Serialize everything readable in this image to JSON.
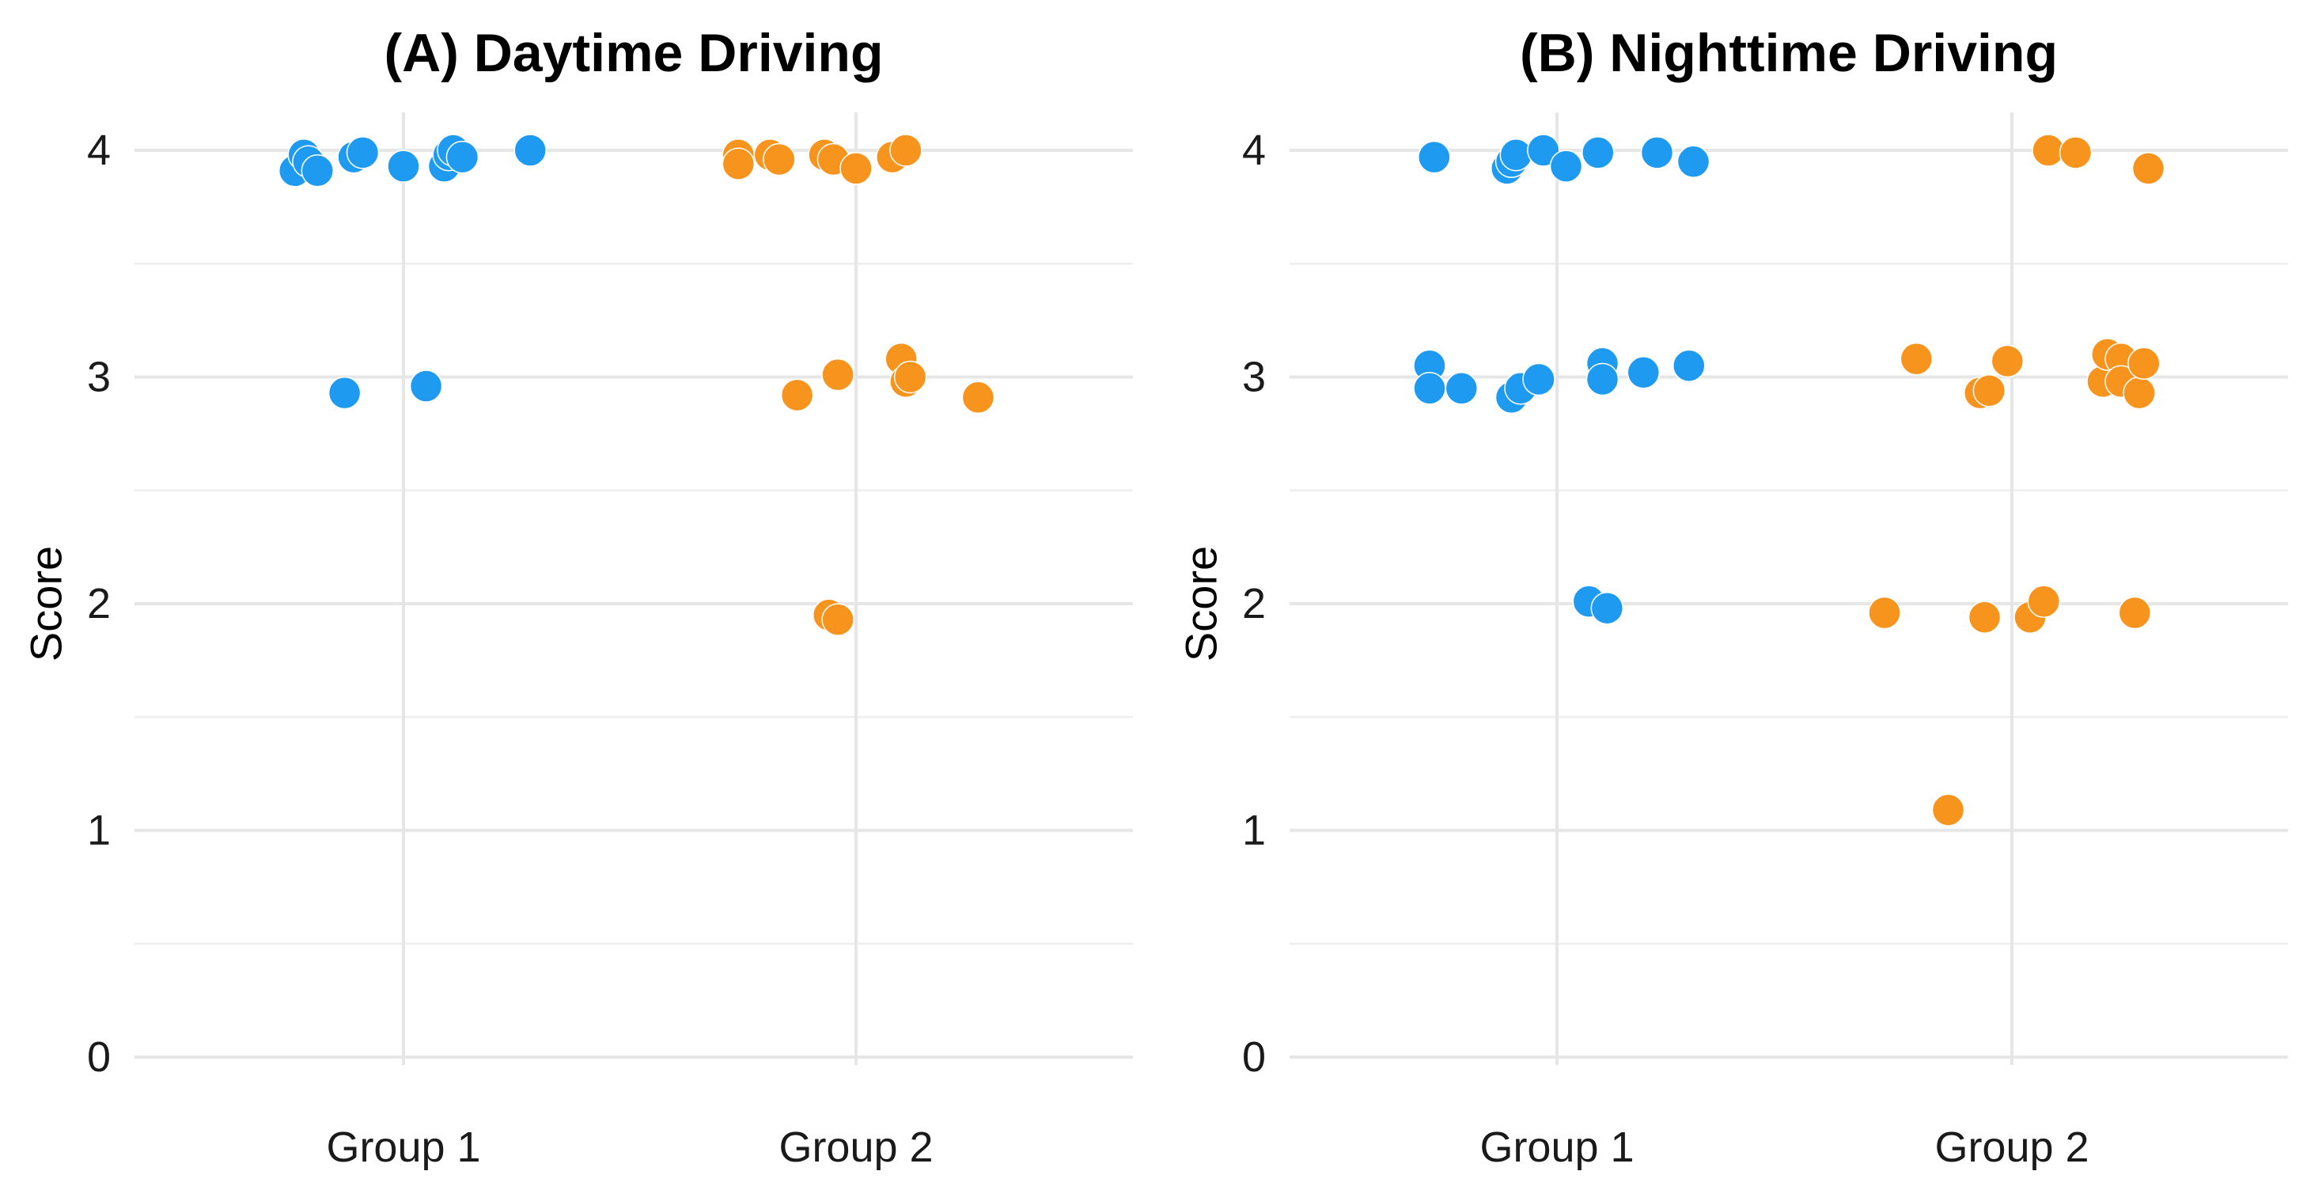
{
  "chart_data": [
    {
      "type": "scatter",
      "title": "(A) Daytime Driving",
      "xlabel": "",
      "ylabel": "Score",
      "categories": [
        "Group 1",
        "Group 2"
      ],
      "ylim": [
        0,
        4
      ],
      "yticks": [
        0,
        1,
        2,
        3,
        4
      ],
      "grid": true,
      "legend": "none",
      "series": [
        {
          "color": "#1e9bf0",
          "points": [
            {
              "x": 0.76,
              "y": 3.91
            },
            {
              "x": 0.78,
              "y": 3.98
            },
            {
              "x": 0.79,
              "y": 3.95
            },
            {
              "x": 0.81,
              "y": 3.91
            },
            {
              "x": 0.87,
              "y": 2.93
            },
            {
              "x": 0.89,
              "y": 3.97
            },
            {
              "x": 0.91,
              "y": 3.99
            },
            {
              "x": 1.0,
              "y": 3.93
            },
            {
              "x": 1.05,
              "y": 2.96
            },
            {
              "x": 1.09,
              "y": 3.93
            },
            {
              "x": 1.1,
              "y": 3.98
            },
            {
              "x": 1.11,
              "y": 4.0
            },
            {
              "x": 1.13,
              "y": 3.97
            },
            {
              "x": 1.28,
              "y": 4.0
            }
          ]
        },
        {
          "color": "#f7941d",
          "points": [
            {
              "x": 1.74,
              "y": 3.98
            },
            {
              "x": 1.74,
              "y": 3.94
            },
            {
              "x": 1.81,
              "y": 3.98
            },
            {
              "x": 1.83,
              "y": 3.96
            },
            {
              "x": 1.87,
              "y": 2.92
            },
            {
              "x": 1.93,
              "y": 3.98
            },
            {
              "x": 1.94,
              "y": 1.95
            },
            {
              "x": 1.95,
              "y": 3.96
            },
            {
              "x": 1.96,
              "y": 1.93
            },
            {
              "x": 1.96,
              "y": 3.01
            },
            {
              "x": 2.0,
              "y": 3.92
            },
            {
              "x": 2.08,
              "y": 3.97
            },
            {
              "x": 2.1,
              "y": 3.08
            },
            {
              "x": 2.11,
              "y": 4.0
            },
            {
              "x": 2.11,
              "y": 2.98
            },
            {
              "x": 2.12,
              "y": 3.0
            },
            {
              "x": 2.27,
              "y": 2.91
            }
          ]
        }
      ]
    },
    {
      "type": "scatter",
      "title": "(B) Nighttime Driving",
      "xlabel": "",
      "ylabel": "Score",
      "categories": [
        "Group 1",
        "Group 2"
      ],
      "ylim": [
        0,
        4
      ],
      "yticks": [
        0,
        1,
        2,
        3,
        4
      ],
      "grid": true,
      "legend": "none",
      "series": [
        {
          "color": "#1e9bf0",
          "points": [
            {
              "x": 0.72,
              "y": 3.05
            },
            {
              "x": 0.72,
              "y": 2.95
            },
            {
              "x": 0.73,
              "y": 3.97
            },
            {
              "x": 0.79,
              "y": 2.95
            },
            {
              "x": 0.89,
              "y": 3.92
            },
            {
              "x": 0.9,
              "y": 2.91
            },
            {
              "x": 0.9,
              "y": 3.95
            },
            {
              "x": 0.91,
              "y": 3.98
            },
            {
              "x": 0.92,
              "y": 2.95
            },
            {
              "x": 0.96,
              "y": 2.99
            },
            {
              "x": 0.97,
              "y": 4.0
            },
            {
              "x": 1.02,
              "y": 3.93
            },
            {
              "x": 1.07,
              "y": 2.01
            },
            {
              "x": 1.09,
              "y": 3.99
            },
            {
              "x": 1.1,
              "y": 3.06
            },
            {
              "x": 1.1,
              "y": 2.99
            },
            {
              "x": 1.11,
              "y": 1.98
            },
            {
              "x": 1.19,
              "y": 3.02
            },
            {
              "x": 1.22,
              "y": 3.99
            },
            {
              "x": 1.29,
              "y": 3.05
            },
            {
              "x": 1.3,
              "y": 3.95
            }
          ]
        },
        {
          "color": "#f7941d",
          "points": [
            {
              "x": 1.72,
              "y": 1.96
            },
            {
              "x": 1.79,
              "y": 3.08
            },
            {
              "x": 1.86,
              "y": 1.09
            },
            {
              "x": 1.93,
              "y": 2.93
            },
            {
              "x": 1.94,
              "y": 1.94
            },
            {
              "x": 1.95,
              "y": 2.94
            },
            {
              "x": 1.99,
              "y": 3.07
            },
            {
              "x": 2.04,
              "y": 1.94
            },
            {
              "x": 2.07,
              "y": 2.01
            },
            {
              "x": 2.08,
              "y": 4.0
            },
            {
              "x": 2.14,
              "y": 3.99
            },
            {
              "x": 2.2,
              "y": 2.98
            },
            {
              "x": 2.21,
              "y": 3.1
            },
            {
              "x": 2.24,
              "y": 3.08
            },
            {
              "x": 2.24,
              "y": 2.98
            },
            {
              "x": 2.27,
              "y": 1.96
            },
            {
              "x": 2.28,
              "y": 2.93
            },
            {
              "x": 2.29,
              "y": 3.06
            },
            {
              "x": 2.3,
              "y": 3.92
            }
          ]
        }
      ]
    }
  ]
}
